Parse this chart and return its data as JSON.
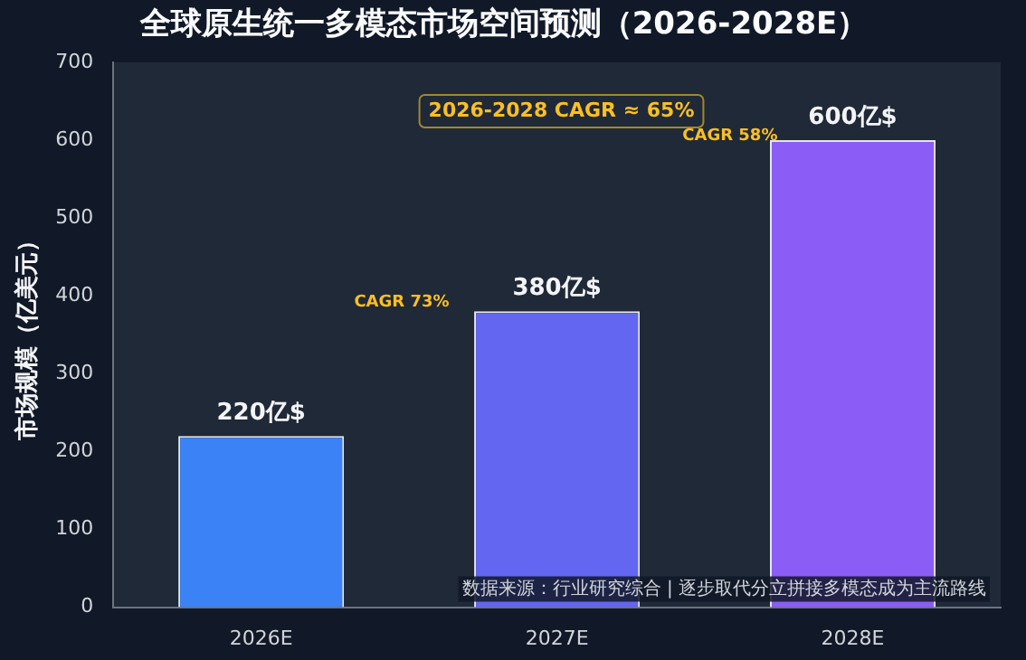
{
  "chart_data": {
    "type": "bar",
    "title": "全球原生统一多模态市场空间预测（2026-2028E）",
    "ylabel": "市场规模（亿美元）",
    "categories": [
      "2026E",
      "2027E",
      "2028E"
    ],
    "values": [
      220,
      380,
      600
    ],
    "colors": [
      "#3b82f6",
      "#6366f1",
      "#8b5cf6"
    ],
    "value_labels": [
      "220亿$",
      "380亿$",
      "600亿$"
    ],
    "ylim": [
      0,
      700
    ],
    "yticks": [
      0,
      100,
      200,
      300,
      400,
      500,
      600,
      700
    ],
    "grid": false,
    "legend": false,
    "annotations": [
      "2026-2028 CAGR ≈ 65%",
      "CAGR 73%",
      "CAGR 58%",
      "数据来源：行业研究综合 | 逐步取代分立拼接多模态成为主流路线"
    ]
  }
}
